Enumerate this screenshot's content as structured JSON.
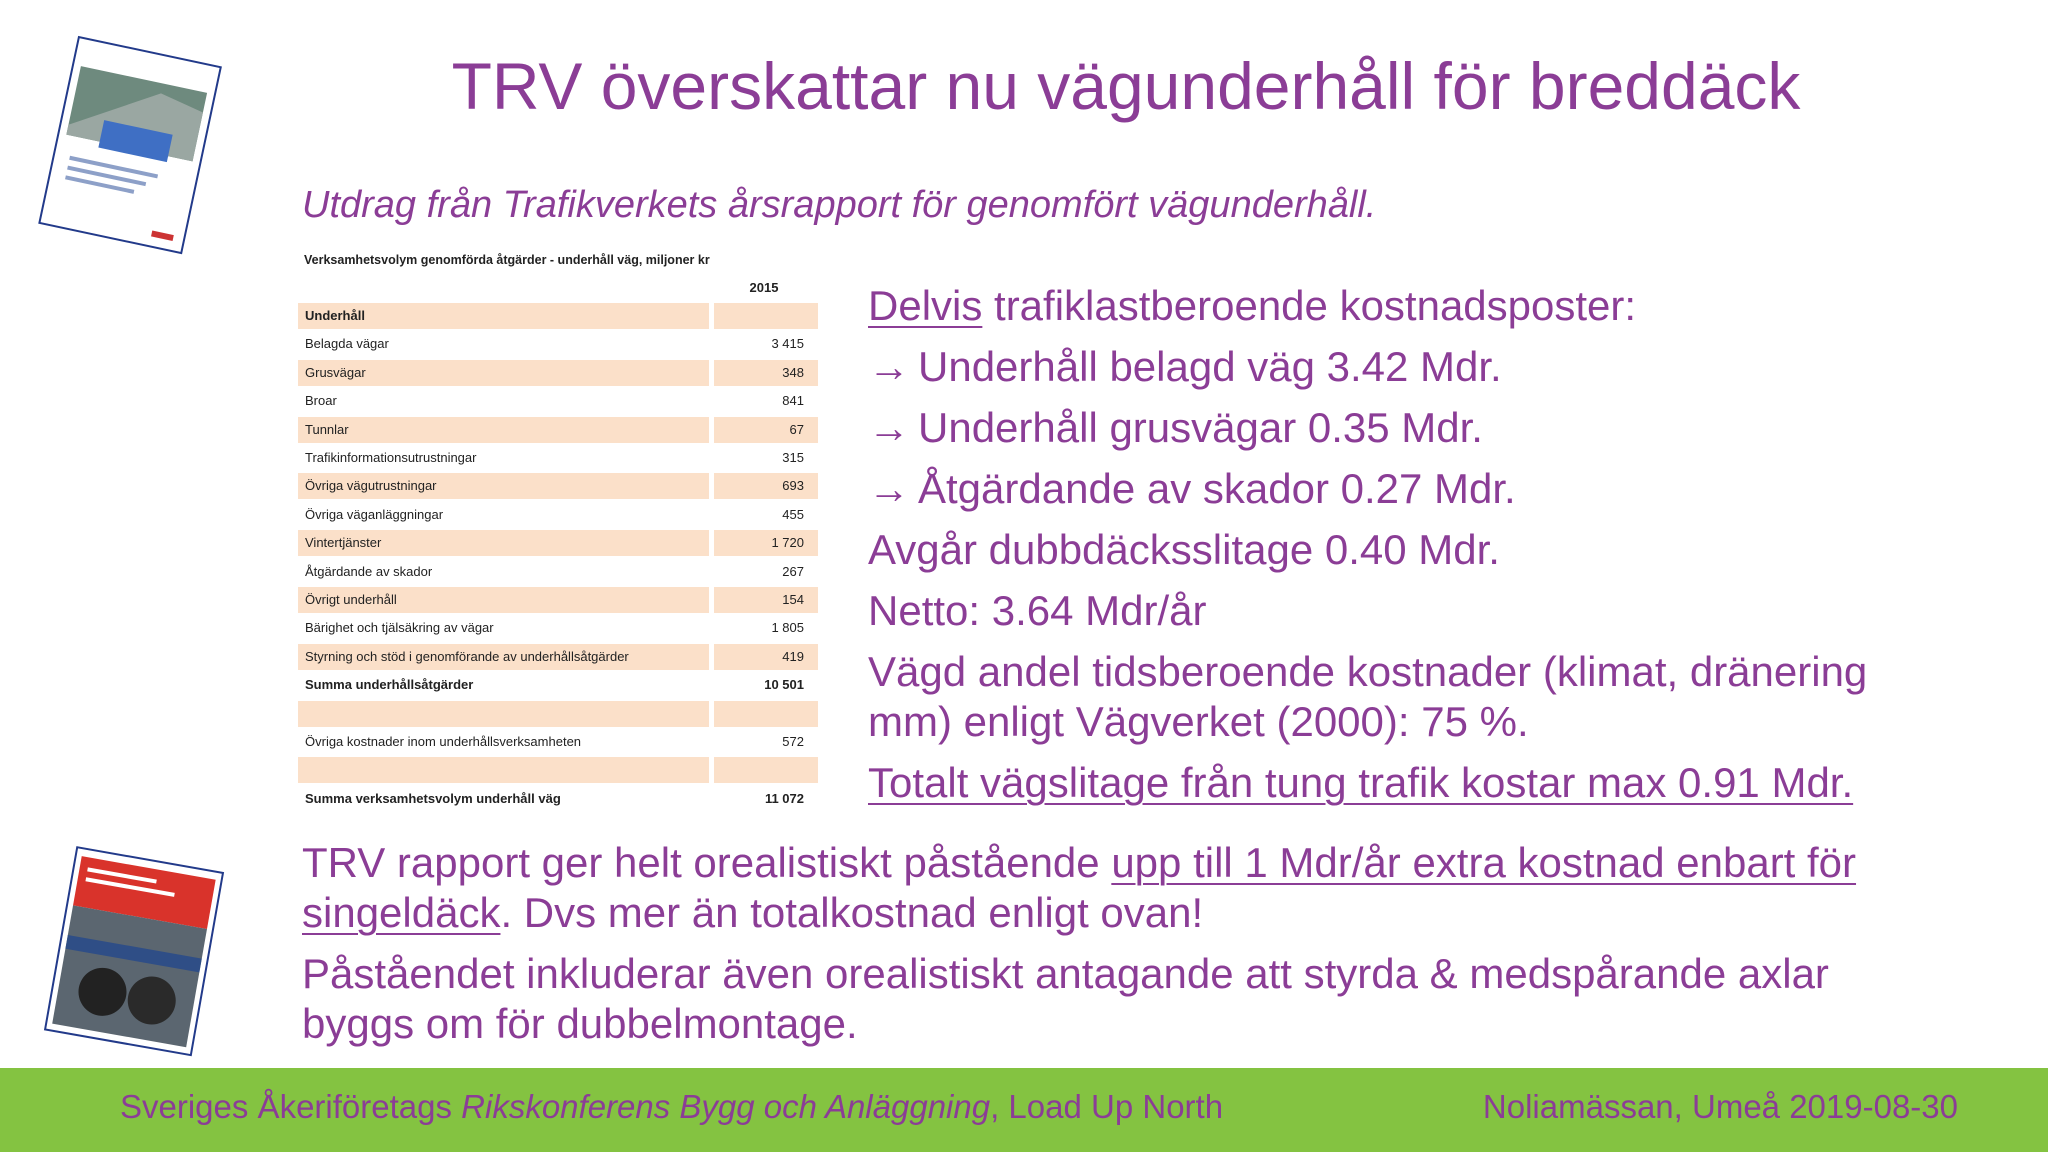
{
  "title": "TRV överskattar nu vägunderhåll för breddäck",
  "subtitle": "Utdrag från Trafikverkets årsrapport för genomfört vägunderhåll.",
  "table": {
    "title": "Verksamhetsvolym genomförda åtgärder -  underhåll väg, miljoner kr",
    "column": "2015",
    "rows": [
      {
        "label": "Underhåll",
        "bold": true
      },
      {
        "label": "Belagda vägar",
        "value": "3 415"
      },
      {
        "label": "Grusvägar",
        "value": "348"
      },
      {
        "label": "Broar",
        "value": "841"
      },
      {
        "label": "Tunnlar",
        "value": "67"
      },
      {
        "label": "Trafikinformationsutrustningar",
        "value": "315"
      },
      {
        "label": "Övriga vägutrustningar",
        "value": "693"
      },
      {
        "label": "Övriga väganläggningar",
        "value": "455"
      },
      {
        "label": "Vintertjänster",
        "value": "1 720"
      },
      {
        "label": "Åtgärdande av skador",
        "value": "267"
      },
      {
        "label": "Övrigt underhåll",
        "value": "154"
      },
      {
        "label": "Bärighet och tjälsäkring av vägar",
        "value": "1 805"
      },
      {
        "label": "Styrning och stöd i genomförande av underhållsåtgärder",
        "value": "419"
      },
      {
        "label": "Summa underhållsåtgärder",
        "value": "10 501",
        "bold": true
      },
      null,
      {
        "label": "Övriga kostnader inom underhållsverksamheten",
        "value": "572"
      },
      null,
      {
        "label": "Summa verksamhetsvolym underhåll väg",
        "value": "11 072",
        "bold": true
      }
    ]
  },
  "points": [
    {
      "lines": [
        [
          {
            "text": "Delvis",
            "underline": true
          },
          {
            "text": " trafiklastberoende kostnadsposter:"
          }
        ]
      ]
    },
    {
      "marker": "→",
      "lines": [
        [
          {
            "text": "Underhåll belagd väg 3.42 Mdr."
          }
        ]
      ]
    },
    {
      "marker": "→",
      "lines": [
        [
          {
            "text": "Underhåll grusvägar 0.35 Mdr."
          }
        ]
      ]
    },
    {
      "marker": "→",
      "lines": [
        [
          {
            "text": "Åtgärdande av skador 0.27 Mdr."
          }
        ]
      ]
    },
    {
      "lines": [
        [
          {
            "text": "Avgår dubbdäcksslitage 0.40 Mdr."
          }
        ]
      ]
    },
    {
      "lines": [
        [
          {
            "text": "Netto: 3.64 Mdr/år"
          }
        ]
      ]
    },
    {
      "lines": [
        [
          {
            "text": "Vägd andel tidsberoende kostnader (klimat, dränering"
          }
        ],
        [
          {
            "text": "mm) enligt Vägverket (2000): 75 %."
          }
        ]
      ]
    },
    {
      "lines": [
        [
          {
            "text": "Totalt vägslitage från tung trafik kostar max 0.91 Mdr.",
            "underline": true
          }
        ]
      ]
    }
  ],
  "paragraphs": [
    {
      "lines": [
        [
          {
            "text": "TRV rapport ger helt orealistiskt påstående "
          },
          {
            "text": "upp till 1 Mdr/år extra kostnad enbart för",
            "underline": true
          }
        ],
        [
          {
            "text": "singeldäck",
            "underline": true
          },
          {
            "text": ". Dvs mer än totalkostnad enligt ovan!"
          }
        ]
      ]
    },
    {
      "lines": [
        [
          {
            "text": "Påståendet inkluderar även orealistiskt antagande att styrda & medspårande axlar"
          }
        ],
        [
          {
            "text": "byggs om för dubbelmontage."
          }
        ]
      ]
    }
  ],
  "footer": {
    "left": [
      {
        "text": "Sveriges Åkeriföretags "
      },
      {
        "text": "Rikskonferens Bygg och Anläggning",
        "italic": true
      },
      {
        "text": ", Load Up North"
      }
    ],
    "right": "Noliamässan, Umeå 2019-08-30"
  }
}
